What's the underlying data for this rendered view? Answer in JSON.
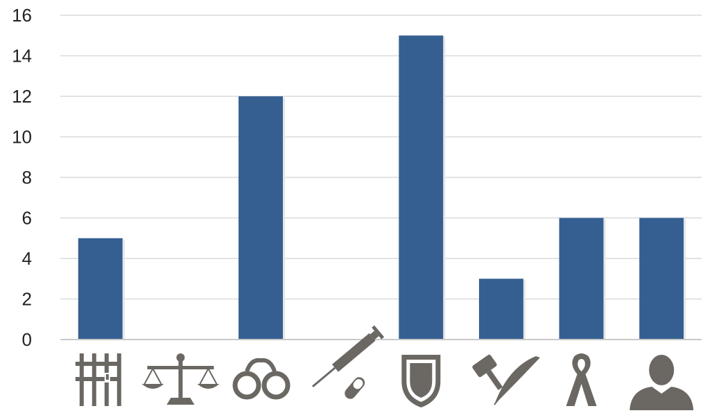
{
  "chart_data": {
    "type": "bar",
    "categories": [
      "prison-icon",
      "scales-of-justice-icon",
      "handcuffs-icon",
      "syringe-pill-icon",
      "shield-icon",
      "gavel-quill-icon",
      "awareness-ribbon-icon",
      "person-icon"
    ],
    "values": [
      5,
      0,
      12,
      0,
      15,
      3,
      6,
      6
    ],
    "ylim": [
      0,
      16
    ],
    "yticks": [
      0,
      2,
      4,
      6,
      8,
      10,
      12,
      14,
      16
    ],
    "title": "",
    "xlabel": "",
    "ylabel": "",
    "grid": true,
    "legend": "none",
    "colors": {
      "bar": "#355f91",
      "icon": "#6b6763",
      "grid": "#d9d9d9"
    }
  }
}
